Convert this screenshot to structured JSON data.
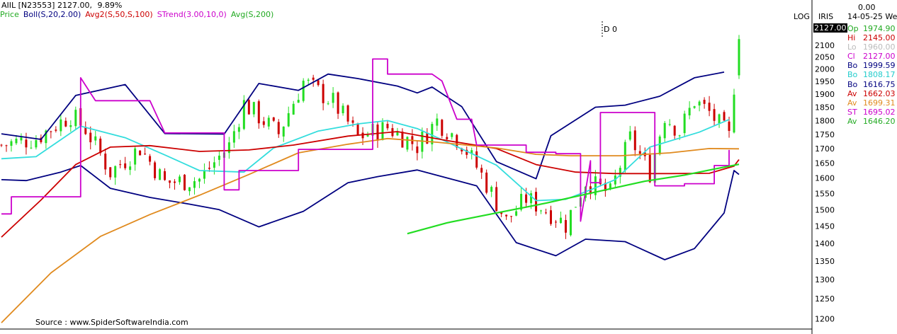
{
  "header": {
    "symbol": "AIIL [N23553]",
    "close": "2127.00,",
    "change_pct": "9.89%",
    "log_label": "LOG",
    "iris_label": "IRIS",
    "top_value": "0.00",
    "date_label": "14-05-25 We",
    "marker_label": "D 0",
    "source": "Source : www.SpiderSoftwareIndia.com",
    "price_tag": "2127.00"
  },
  "legend": [
    {
      "label": "Price",
      "color": "#22aa22"
    },
    {
      "label": "Boll(S,20,2.00)",
      "color": "#000080"
    },
    {
      "label": "Avg2(S,50,S,100)",
      "color": "#cc0000"
    },
    {
      "label": "STrend(3.00,10,0)",
      "color": "#cc00cc"
    },
    {
      "label": "Avg(S,200)",
      "color": "#22aa22"
    }
  ],
  "info_panel": [
    {
      "k": "Op",
      "v": "1974.90",
      "color": "#22aa22"
    },
    {
      "k": "Hi",
      "v": "2145.00",
      "color": "#cc0000"
    },
    {
      "k": "Lo",
      "v": "1960.00",
      "color": "#bbbbbb"
    },
    {
      "k": "Cl",
      "v": "2127.00",
      "color": "#cc00cc"
    },
    {
      "k": "Bo",
      "v": "1999.59",
      "color": "#000080"
    },
    {
      "k": "Bo",
      "v": "1808.17",
      "color": "#22cccc"
    },
    {
      "k": "Bo",
      "v": "1616.75",
      "color": "#000080"
    },
    {
      "k": "Av",
      "v": "1662.03",
      "color": "#cc0000"
    },
    {
      "k": "Av",
      "v": "1699.31",
      "color": "#e08a1e"
    },
    {
      "k": "ST",
      "v": "1695.02",
      "color": "#cc00cc"
    },
    {
      "k": "Av",
      "v": "1646.20",
      "color": "#22aa22"
    }
  ],
  "chart_data": {
    "type": "line",
    "scale": "log",
    "ylim": [
      1185,
      2165
    ],
    "yticks": [
      1200,
      1250,
      1300,
      1350,
      1400,
      1450,
      1500,
      1550,
      1600,
      1650,
      1700,
      1750,
      1800,
      1850,
      1900,
      1950,
      2000,
      2050,
      2100
    ],
    "n_bars": 150,
    "colors": {
      "up": "#22dd22",
      "down": "#cc0000",
      "upper_band": "#000080",
      "mid_band": "#33dddd",
      "lower_band": "#000080",
      "avg50": "#cc0000",
      "avg100": "#e08a1e",
      "strend": "#cc00cc",
      "avg200": "#22dd22"
    },
    "series": [
      {
        "key": "upper_band",
        "points": [
          [
            0,
            1752
          ],
          [
            8,
            1732
          ],
          [
            15,
            1895
          ],
          [
            25,
            1938
          ],
          [
            33,
            1753
          ],
          [
            45,
            1751
          ],
          [
            52,
            1942
          ],
          [
            60,
            1915
          ],
          [
            66,
            1980
          ],
          [
            72,
            1962
          ],
          [
            80,
            1932
          ],
          [
            84,
            1905
          ],
          [
            87,
            1928
          ],
          [
            93,
            1852
          ],
          [
            100,
            1655
          ],
          [
            108,
            1598
          ],
          [
            111,
            1745
          ],
          [
            120,
            1850
          ],
          [
            126,
            1858
          ],
          [
            133,
            1892
          ],
          [
            140,
            1965
          ],
          [
            146,
            1988
          ]
        ]
      },
      {
        "key": "mid_band",
        "points": [
          [
            0,
            1665
          ],
          [
            7,
            1672
          ],
          [
            16,
            1780
          ],
          [
            25,
            1738
          ],
          [
            33,
            1678
          ],
          [
            40,
            1625
          ],
          [
            49,
            1620
          ],
          [
            55,
            1702
          ],
          [
            64,
            1762
          ],
          [
            72,
            1788
          ],
          [
            78,
            1800
          ],
          [
            84,
            1771
          ],
          [
            90,
            1723
          ],
          [
            100,
            1643
          ],
          [
            108,
            1528
          ],
          [
            114,
            1532
          ],
          [
            119,
            1562
          ],
          [
            124,
            1595
          ],
          [
            131,
            1705
          ],
          [
            141,
            1758
          ],
          [
            147,
            1804
          ]
        ]
      },
      {
        "key": "lower_band",
        "points": [
          [
            0,
            1595
          ],
          [
            5,
            1592
          ],
          [
            12,
            1620
          ],
          [
            16,
            1642
          ],
          [
            22,
            1567
          ],
          [
            30,
            1538
          ],
          [
            38,
            1517
          ],
          [
            44,
            1500
          ],
          [
            52,
            1448
          ],
          [
            61,
            1495
          ],
          [
            70,
            1585
          ],
          [
            76,
            1605
          ],
          [
            84,
            1627
          ],
          [
            96,
            1575
          ],
          [
            104,
            1402
          ],
          [
            112,
            1365
          ],
          [
            118,
            1412
          ],
          [
            126,
            1405
          ],
          [
            134,
            1354
          ],
          [
            140,
            1385
          ],
          [
            146,
            1490
          ],
          [
            148,
            1625
          ],
          [
            149,
            1612
          ]
        ]
      },
      {
        "key": "avg50",
        "points": [
          [
            0,
            1418
          ],
          [
            8,
            1530
          ],
          [
            15,
            1645
          ],
          [
            22,
            1705
          ],
          [
            30,
            1710
          ],
          [
            40,
            1690
          ],
          [
            50,
            1695
          ],
          [
            59,
            1712
          ],
          [
            70,
            1744
          ],
          [
            80,
            1760
          ],
          [
            90,
            1728
          ],
          [
            100,
            1700
          ],
          [
            108,
            1645
          ],
          [
            116,
            1620
          ],
          [
            124,
            1615
          ],
          [
            135,
            1615
          ],
          [
            143,
            1616
          ],
          [
            148,
            1640
          ],
          [
            149,
            1662
          ]
        ]
      },
      {
        "key": "avg100",
        "points": [
          [
            0,
            1190
          ],
          [
            10,
            1318
          ],
          [
            20,
            1420
          ],
          [
            30,
            1485
          ],
          [
            40,
            1545
          ],
          [
            50,
            1612
          ],
          [
            60,
            1685
          ],
          [
            70,
            1715
          ],
          [
            78,
            1735
          ],
          [
            88,
            1722
          ],
          [
            100,
            1702
          ],
          [
            108,
            1680
          ],
          [
            115,
            1675
          ],
          [
            125,
            1675
          ],
          [
            135,
            1685
          ],
          [
            143,
            1700
          ],
          [
            149,
            1699
          ]
        ]
      },
      {
        "key": "strend",
        "points": [
          [
            0,
            1487
          ],
          [
            2,
            1487
          ],
          [
            2,
            1540
          ],
          [
            16,
            1540
          ],
          [
            16,
            1965
          ],
          [
            19,
            1875
          ],
          [
            30,
            1875
          ],
          [
            33,
            1755
          ],
          [
            45,
            1755
          ],
          [
            45,
            1562
          ],
          [
            48,
            1562
          ],
          [
            48,
            1625
          ],
          [
            60,
            1625
          ],
          [
            60,
            1697
          ],
          [
            75,
            1697
          ],
          [
            75,
            2042
          ],
          [
            78,
            2042
          ],
          [
            78,
            1980
          ],
          [
            87,
            1980
          ],
          [
            89,
            1952
          ],
          [
            92,
            1805
          ],
          [
            95,
            1805
          ],
          [
            96,
            1712
          ],
          [
            106,
            1712
          ],
          [
            106,
            1687
          ],
          [
            112,
            1687
          ],
          [
            112,
            1682
          ],
          [
            117,
            1682
          ],
          [
            117,
            1465
          ],
          [
            119,
            1658
          ],
          [
            119,
            1585
          ],
          [
            121,
            1585
          ],
          [
            121,
            1830
          ],
          [
            132,
            1830
          ],
          [
            132,
            1575
          ],
          [
            138,
            1575
          ],
          [
            138,
            1582
          ],
          [
            144,
            1582
          ],
          [
            144,
            1642
          ],
          [
            147,
            1642
          ],
          [
            147,
            1695
          ]
        ]
      },
      {
        "key": "avg200",
        "points": [
          [
            82,
            1428
          ],
          [
            90,
            1460
          ],
          [
            100,
            1490
          ],
          [
            110,
            1520
          ],
          [
            120,
            1555
          ],
          [
            130,
            1590
          ],
          [
            138,
            1610
          ],
          [
            144,
            1630
          ],
          [
            149,
            1646
          ]
        ]
      }
    ],
    "candle_anchors": [
      [
        0,
        1712
      ],
      [
        7,
        1736
      ],
      [
        14,
        1820
      ],
      [
        17,
        1770
      ],
      [
        22,
        1620
      ],
      [
        28,
        1702
      ],
      [
        33,
        1585
      ],
      [
        40,
        1596
      ],
      [
        46,
        1710
      ],
      [
        49,
        1864
      ],
      [
        56,
        1752
      ],
      [
        61,
        1950
      ],
      [
        67,
        1870
      ],
      [
        72,
        1740
      ],
      [
        78,
        1775
      ],
      [
        84,
        1710
      ],
      [
        88,
        1800
      ],
      [
        93,
        1720
      ],
      [
        97,
        1610
      ],
      [
        102,
        1465
      ],
      [
        106,
        1535
      ],
      [
        111,
        1490
      ],
      [
        114,
        1455
      ],
      [
        118,
        1590
      ],
      [
        123,
        1550
      ],
      [
        127,
        1735
      ],
      [
        131,
        1620
      ],
      [
        134,
        1820
      ],
      [
        137,
        1760
      ],
      [
        140,
        1875
      ],
      [
        143,
        1830
      ],
      [
        147,
        1740
      ],
      [
        149,
        2127
      ]
    ]
  }
}
